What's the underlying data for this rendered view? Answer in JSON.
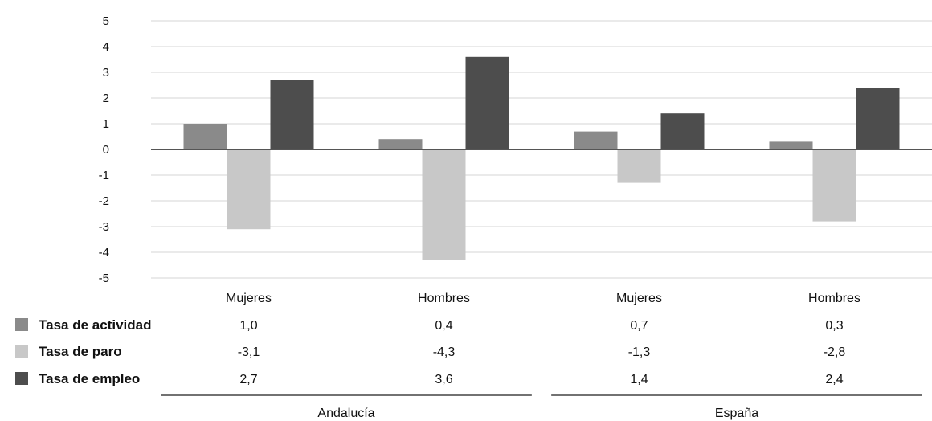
{
  "chart_data": {
    "type": "bar",
    "yticks": [
      "5",
      "4",
      "3",
      "2",
      "1",
      "0",
      "-1",
      "-2",
      "-3",
      "-4",
      "-5"
    ],
    "ylim": [
      -5,
      5
    ],
    "grid": true,
    "categories": [
      "Mujeres",
      "Hombres",
      "Mujeres",
      "Hombres"
    ],
    "groups": [
      {
        "name": "Andalucía",
        "categories": [
          0,
          1
        ]
      },
      {
        "name": "España",
        "categories": [
          2,
          3
        ]
      }
    ],
    "series": [
      {
        "name": "Tasa de actividad",
        "color": "#8a8a8a",
        "values": [
          1.0,
          0.4,
          0.7,
          0.3
        ],
        "labels": [
          "1,0",
          "0,4",
          "0,7",
          "0,3"
        ]
      },
      {
        "name": "Tasa de paro",
        "color": "#c8c8c8",
        "values": [
          -3.1,
          -4.3,
          -1.3,
          -2.8
        ],
        "labels": [
          "-3,1",
          "-4,3",
          "-1,3",
          "-2,8"
        ]
      },
      {
        "name": "Tasa de empleo",
        "color": "#4d4d4d",
        "values": [
          2.7,
          3.6,
          1.4,
          2.4
        ],
        "labels": [
          "2,7",
          "3,6",
          "1,4",
          "2,4"
        ]
      }
    ]
  }
}
